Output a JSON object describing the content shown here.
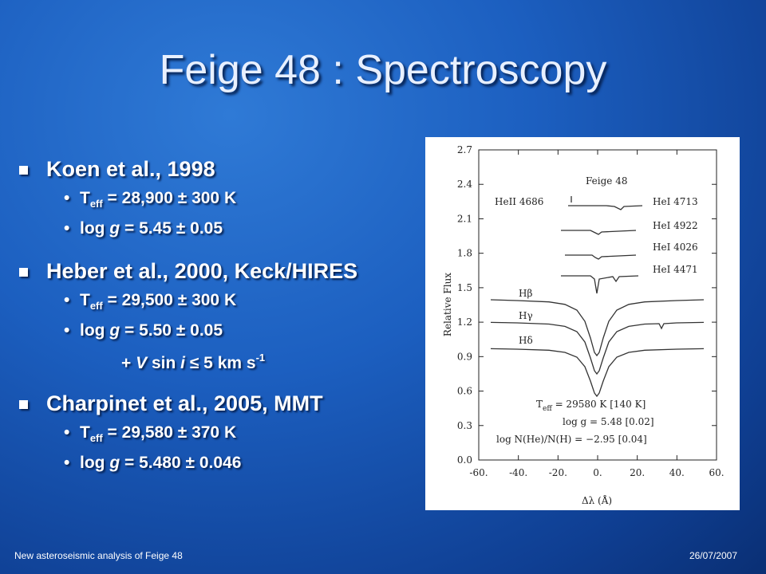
{
  "title": "Feige 48 : Spectroscopy",
  "bullets": [
    {
      "text": "Koen et al., 1998",
      "items": [
        {
          "segments": [
            {
              "text": "T"
            },
            {
              "text": "eff",
              "style": "sub"
            },
            {
              "text": " = 28,900 ± 300 K"
            }
          ]
        },
        {
          "segments": [
            {
              "text": "log "
            },
            {
              "text": "g",
              "style": "italic"
            },
            {
              "text": " = 5.45 ± 0.05"
            }
          ]
        }
      ]
    },
    {
      "text": "Heber et al., 2000, Keck/HIRES",
      "items": [
        {
          "segments": [
            {
              "text": "T"
            },
            {
              "text": "eff",
              "style": "sub"
            },
            {
              "text": " = 29,500 ± 300 K"
            }
          ]
        },
        {
          "segments": [
            {
              "text": "log "
            },
            {
              "text": "g",
              "style": "italic"
            },
            {
              "text": " = 5.50 ± 0.05"
            }
          ]
        },
        {
          "bullet": false,
          "segments": [
            {
              "text": "+ "
            },
            {
              "text": "V",
              "style": "italic"
            },
            {
              "text": " sin "
            },
            {
              "text": "i",
              "style": "italic"
            },
            {
              "text": " ≤ 5 km s"
            },
            {
              "text": "-1",
              "style": "sup"
            }
          ]
        }
      ]
    },
    {
      "text": "Charpinet et al., 2005, MMT",
      "items": [
        {
          "segments": [
            {
              "text": "T"
            },
            {
              "text": "eff",
              "style": "sub"
            },
            {
              "text": " = 29,580 ± 370 K"
            }
          ]
        },
        {
          "segments": [
            {
              "text": "log "
            },
            {
              "text": "g",
              "style": "italic"
            },
            {
              "text": " = 5.480 ± 0.046"
            }
          ]
        }
      ]
    }
  ],
  "figure": {
    "ylabel": "Relative Flux",
    "xlabel": "Δλ (Å)",
    "xlim": [
      -60,
      60
    ],
    "ylim": [
      0,
      2.7
    ],
    "xticks": [
      {
        "value": -60,
        "label": "-60."
      },
      {
        "value": -40,
        "label": "-40."
      },
      {
        "value": -20,
        "label": "-20."
      },
      {
        "value": 0,
        "label": "0."
      },
      {
        "value": 20,
        "label": "20."
      },
      {
        "value": 40,
        "label": "40."
      },
      {
        "value": 60,
        "label": "60."
      }
    ],
    "yticks": [
      {
        "value": 0,
        "label": "0.0"
      },
      0.3,
      0.6,
      0.9,
      1.2,
      1.5,
      1.8,
      2.1,
      2.4,
      2.7
    ],
    "labels": [
      "Feige 48",
      "HeII 4686",
      "HeI 4713",
      "HeI 4922",
      "HeI 4026",
      "HeI 4471",
      "Hβ",
      "Hγ",
      "Hδ"
    ],
    "annotations": [
      {
        "segments": [
          {
            "text": "T"
          },
          {
            "text": "eff",
            "style": "sub"
          },
          {
            "text": " = 29580 K [140 K]"
          }
        ]
      },
      {
        "segments": [
          {
            "text": "log g = 5.48 [0.02]"
          }
        ]
      },
      {
        "segments": [
          {
            "text": "log N(He)/N(H) = −2.95 [0.04]"
          }
        ]
      }
    ]
  },
  "footer": {
    "left": "New asteroseismic analysis of Feige 48",
    "right": "26/07/2007"
  }
}
